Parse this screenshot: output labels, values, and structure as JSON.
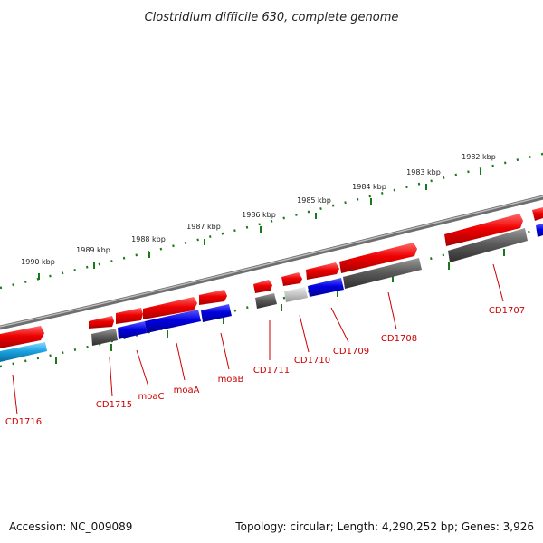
{
  "title": "Clostridium difficile 630, complete genome",
  "footer": {
    "accession": "Accession: NC_009089",
    "topology": "Topology: circular; Length: 4,290,252 bp; Genes: 3,926"
  },
  "ticks": [
    "1990 kbp",
    "1989 kbp",
    "1988 kbp",
    "1987 kbp",
    "1986 kbp",
    "1985 kbp",
    "1984 kbp",
    "1983 kbp",
    "1982 kbp"
  ],
  "genes": [
    "CD1716",
    "CD1715",
    "moaC",
    "moaA",
    "moaB",
    "CD1711",
    "CD1710",
    "CD1709",
    "CD1708",
    "CD1707"
  ],
  "colors": {
    "feature_red": "#e00000",
    "feature_blue": "#0000dd",
    "feature_grey": "#5a5a5a",
    "feature_lightgrey": "#c8c8c8",
    "feature_cyan": "#1aa3e0",
    "backbone": "#808080",
    "ruler": "#1a7a1a",
    "label": "#cc0000"
  }
}
